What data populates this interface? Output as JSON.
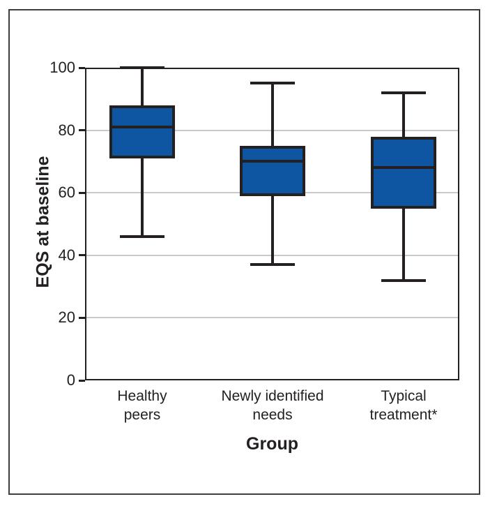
{
  "figure": {
    "background": "#ffffff",
    "outer_border_color": "#3d3d3d"
  },
  "chart_data": {
    "type": "boxplot",
    "title": "",
    "xlabel": "Group",
    "ylabel": "EQS at baseline",
    "ylim": [
      0,
      100
    ],
    "yticks": [
      0,
      20,
      40,
      60,
      80,
      100
    ],
    "gridlines": [
      20,
      40,
      60,
      80
    ],
    "grid": "horizontal-light-gray",
    "legend": "none",
    "categories": [
      "Healthy peers",
      "Newly identified needs",
      "Typical treatment*"
    ],
    "boxes": [
      {
        "label": "Healthy peers",
        "label_lines": [
          "Healthy",
          "peers"
        ],
        "whisker_low": 46,
        "q1": 71,
        "median": 81,
        "q3": 88,
        "whisker_high": 100
      },
      {
        "label": "Newly identified needs",
        "label_lines": [
          "Newly identified",
          "needs"
        ],
        "whisker_low": 37,
        "q1": 59,
        "median": 70,
        "q3": 75,
        "whisker_high": 95
      },
      {
        "label": "Typical treatment*",
        "label_lines": [
          "Typical",
          "treatment*"
        ],
        "whisker_low": 32,
        "q1": 55,
        "median": 68,
        "q3": 78,
        "whisker_high": 92
      }
    ],
    "colors": {
      "box_fill": "#0F56A2",
      "line": "#242021",
      "gridline": "#c9c9c9",
      "text": "#242021"
    }
  }
}
